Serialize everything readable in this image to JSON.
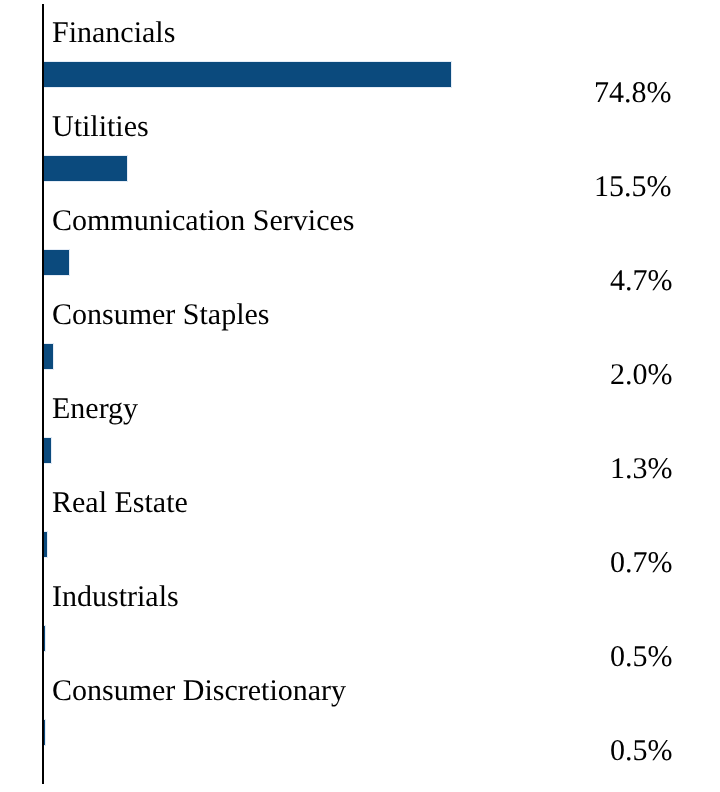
{
  "chart_data": {
    "type": "bar",
    "orientation": "horizontal",
    "categories": [
      "Financials",
      "Utilities",
      "Communication Services",
      "Consumer Staples",
      "Energy",
      "Real Estate",
      "Industrials",
      "Consumer Discretionary"
    ],
    "values": [
      74.8,
      15.5,
      4.7,
      2.0,
      1.3,
      0.7,
      0.5,
      0.5
    ],
    "value_labels": [
      "74.8%",
      "15.5%",
      "4.7%",
      "2.0%",
      "1.3%",
      "0.7%",
      "0.5%",
      "0.5%"
    ],
    "color": "#0b4a7d"
  }
}
